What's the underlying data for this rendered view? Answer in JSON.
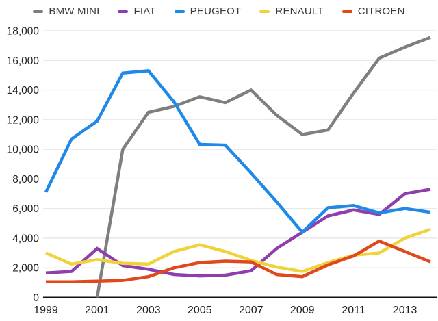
{
  "chart": {
    "legend": [
      {
        "label": "BMW MINI",
        "color": "#7F7F7F"
      },
      {
        "label": "FIAT",
        "color": "#8E3FAD"
      },
      {
        "label": "PEUGEOT",
        "color": "#2089E8"
      },
      {
        "label": "RENAULT",
        "color": "#F0D33C"
      },
      {
        "label": "CITROEN",
        "color": "#E0491C"
      }
    ]
  },
  "chart_data": {
    "type": "line",
    "title": "",
    "x": [
      1999,
      2000,
      2001,
      2002,
      2003,
      2004,
      2005,
      2006,
      2007,
      2008,
      2009,
      2010,
      2011,
      2012,
      2013,
      2014
    ],
    "series": [
      {
        "name": "BMW MINI",
        "color": "#7F7F7F",
        "values": [
          null,
          null,
          0,
          10000,
          12500,
          12900,
          13550,
          13150,
          14000,
          12300,
          11000,
          11300,
          13800,
          16150,
          16900,
          17550
        ]
      },
      {
        "name": "FIAT",
        "color": "#8E3FAD",
        "values": [
          1650,
          1750,
          3300,
          2150,
          1900,
          1550,
          1450,
          1500,
          1800,
          3300,
          4400,
          5500,
          5900,
          5600,
          7000,
          7300
        ]
      },
      {
        "name": "PEUGEOT",
        "color": "#2089E8",
        "values": [
          7100,
          10700,
          11900,
          15150,
          15300,
          13200,
          10330,
          10280,
          8400,
          6450,
          4400,
          6050,
          6200,
          5700,
          6000,
          5750
        ]
      },
      {
        "name": "RENAULT",
        "color": "#F0D33C",
        "values": [
          3000,
          2250,
          2550,
          2300,
          2250,
          3100,
          3550,
          3100,
          2500,
          2050,
          1750,
          2350,
          2850,
          3000,
          4000,
          4600
        ]
      },
      {
        "name": "CITROEN",
        "color": "#E0491C",
        "values": [
          1050,
          1050,
          1100,
          1150,
          1400,
          2000,
          2350,
          2450,
          2400,
          1550,
          1400,
          2200,
          2800,
          3800,
          3100,
          2400
        ]
      }
    ],
    "x_tick_labels": [
      "1999",
      "2001",
      "2003",
      "2005",
      "2007",
      "2009",
      "2011",
      "2013"
    ],
    "y_tick_labels": [
      "0",
      "2,000",
      "4,000",
      "6,000",
      "8,000",
      "10,000",
      "12,000",
      "14,000",
      "16,000",
      "18,000"
    ],
    "ylim": [
      0,
      18000
    ],
    "y_step": 2000,
    "grid": "horizontal-only",
    "legend_position": "top"
  }
}
